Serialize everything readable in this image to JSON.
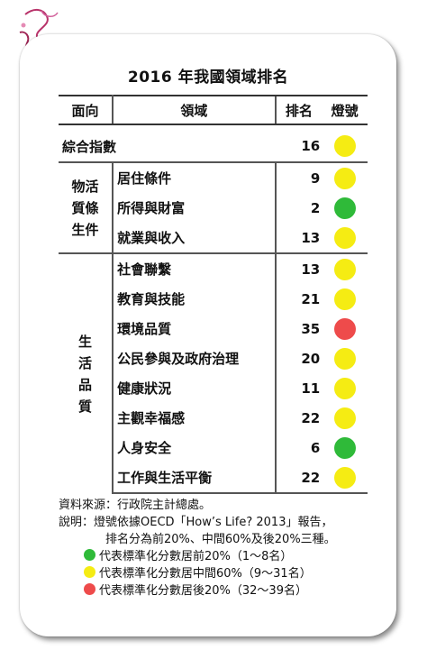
{
  "title": "2016 年我國領域排名",
  "headers": {
    "direction": "面向",
    "domain": "領域",
    "rank": "排名",
    "light": "燈號"
  },
  "colors": {
    "green": "#2fba39",
    "yellow": "#f5ec13",
    "red": "#ee4b4b"
  },
  "overall": {
    "label": "綜合指數",
    "rank": "16",
    "light": "yellow"
  },
  "groups": [
    {
      "label": "物活質條生件",
      "rows": [
        {
          "domain": "居住條件",
          "rank": "9",
          "light": "yellow"
        },
        {
          "domain": "所得與財富",
          "rank": "2",
          "light": "green"
        },
        {
          "domain": "就業與收入",
          "rank": "13",
          "light": "yellow"
        }
      ]
    },
    {
      "label": "生活品質",
      "rows": [
        {
          "domain": "社會聯繫",
          "rank": "13",
          "light": "yellow"
        },
        {
          "domain": "教育與技能",
          "rank": "21",
          "light": "yellow"
        },
        {
          "domain": "環境品質",
          "rank": "35",
          "light": "red"
        },
        {
          "domain": "公民參與及政府治理",
          "rank": "20",
          "light": "yellow"
        },
        {
          "domain": "健康狀況",
          "rank": "11",
          "light": "yellow"
        },
        {
          "domain": "主觀幸福感",
          "rank": "22",
          "light": "yellow"
        },
        {
          "domain": "人身安全",
          "rank": "6",
          "light": "green"
        },
        {
          "domain": "工作與生活平衡",
          "rank": "22",
          "light": "yellow"
        }
      ]
    }
  ],
  "notes": {
    "source": "資料來源：行政院主計總處。",
    "explain1": "說明：燈號依據OECD「How’s Life? 2013」報告，",
    "explain2": "排名分為前20%、中間60%及後20%三種。",
    "legend": [
      {
        "light": "green",
        "text": "代表標準化分數居前20%（1～8名）"
      },
      {
        "light": "yellow",
        "text": "代表標準化分數居中間60%（9～31名）"
      },
      {
        "light": "red",
        "text": "代表標準化分數居後20%（32～39名）"
      }
    ]
  }
}
